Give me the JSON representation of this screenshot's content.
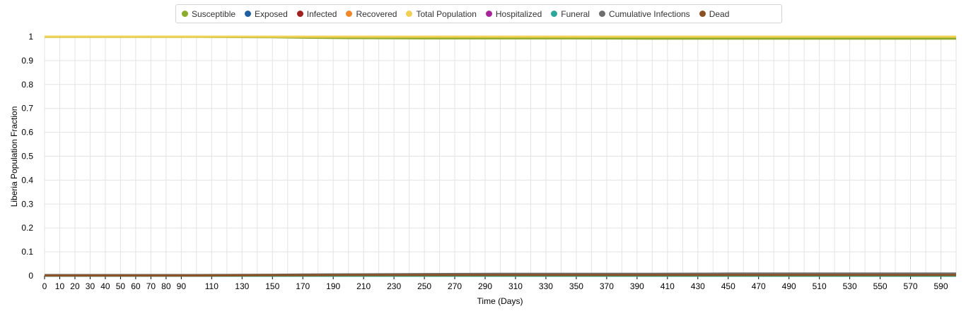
{
  "chart_data": {
    "type": "line",
    "title": "",
    "xlabel": "Time (Days)",
    "ylabel": "Liberia Population Fraction",
    "xlim": [
      0,
      600
    ],
    "ylim": [
      0,
      1
    ],
    "grid": true,
    "legend_position": "top-center",
    "x_ticks": [
      "0",
      "10",
      "20",
      "30",
      "40",
      "50",
      "60",
      "70",
      "80",
      "90",
      "110",
      "130",
      "150",
      "170",
      "190",
      "210",
      "230",
      "250",
      "270",
      "290",
      "310",
      "330",
      "350",
      "370",
      "390",
      "410",
      "430",
      "450",
      "470",
      "490",
      "510",
      "530",
      "550",
      "570",
      "590"
    ],
    "y_ticks": [
      "0",
      "0.1",
      "0.2",
      "0.3",
      "0.4",
      "0.5",
      "0.6",
      "0.7",
      "0.8",
      "0.9",
      "1"
    ],
    "x": [
      0,
      100,
      150,
      170,
      200,
      250,
      300,
      350,
      400,
      450,
      500,
      550,
      600
    ],
    "series": [
      {
        "name": "Susceptible",
        "color": "#8dab2c",
        "values": [
          0.999,
          0.999,
          0.998,
          0.996,
          0.994,
          0.993,
          0.993,
          0.993,
          0.992,
          0.992,
          0.992,
          0.992,
          0.992
        ]
      },
      {
        "name": "Exposed",
        "color": "#1f5fa0",
        "values": [
          0,
          0,
          0,
          0,
          0,
          0,
          0,
          0,
          0,
          0,
          0,
          0,
          0
        ]
      },
      {
        "name": "Infected",
        "color": "#a12020",
        "values": [
          0,
          0,
          0,
          0,
          0,
          0,
          0,
          0,
          0,
          0,
          0,
          0,
          0
        ]
      },
      {
        "name": "Recovered",
        "color": "#f0882a",
        "values": [
          0.002,
          0.002,
          0.002,
          0.003,
          0.004,
          0.005,
          0.005,
          0.005,
          0.005,
          0.006,
          0.006,
          0.006,
          0.006
        ]
      },
      {
        "name": "Total Population",
        "color": "#f2d054",
        "values": [
          1,
          1,
          1,
          1,
          1,
          1,
          1,
          1,
          1,
          1,
          1,
          1,
          1
        ]
      },
      {
        "name": "Hospitalized",
        "color": "#a6259a",
        "values": [
          0,
          0,
          0,
          0,
          0,
          0,
          0,
          0,
          0,
          0,
          0,
          0,
          0
        ]
      },
      {
        "name": "Funeral",
        "color": "#2ba89a",
        "values": [
          0,
          0,
          0,
          0,
          0,
          0,
          0,
          0,
          0,
          0,
          0,
          0,
          0
        ]
      },
      {
        "name": "Cumulative Infections",
        "color": "#6e6e6e",
        "values": [
          0.003,
          0.003,
          0.004,
          0.005,
          0.006,
          0.007,
          0.008,
          0.008,
          0.008,
          0.009,
          0.009,
          0.009,
          0.009
        ]
      },
      {
        "name": "Dead",
        "color": "#8a5223",
        "values": [
          0.001,
          0.001,
          0.002,
          0.002,
          0.003,
          0.003,
          0.003,
          0.003,
          0.003,
          0.003,
          0.003,
          0.003,
          0.003
        ]
      }
    ]
  }
}
